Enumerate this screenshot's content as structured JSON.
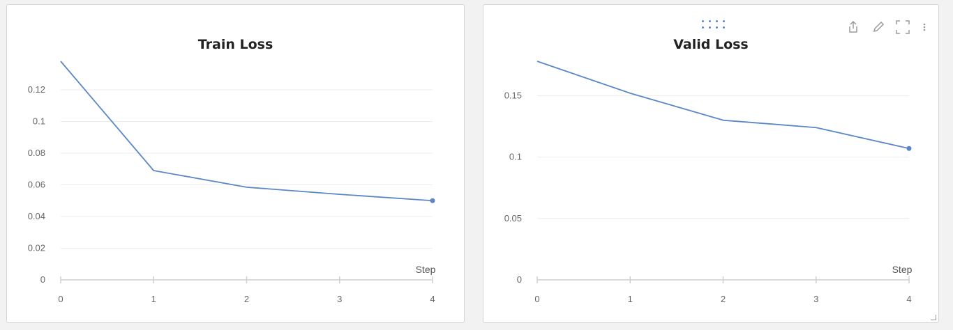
{
  "chart_data": [
    {
      "type": "line",
      "title": "Train Loss",
      "xlabel": "Step",
      "ylabel": "",
      "x": [
        0,
        1,
        2,
        3,
        4
      ],
      "series": [
        {
          "values": [
            0.138,
            0.069,
            0.0585,
            0.054,
            0.05
          ]
        }
      ],
      "xticks": [
        "0",
        "1",
        "2",
        "3",
        "4"
      ],
      "yticks": [
        "0",
        "0.02",
        "0.04",
        "0.06",
        "0.08",
        "0.1",
        "0.12"
      ],
      "ylim": [
        0,
        0.138
      ],
      "xlim": [
        0,
        4
      ],
      "grid": true,
      "line_color": "#5b86c7"
    },
    {
      "type": "line",
      "title": "Valid Loss",
      "xlabel": "Step",
      "ylabel": "",
      "x": [
        0,
        1,
        2,
        3,
        4
      ],
      "series": [
        {
          "values": [
            0.178,
            0.152,
            0.13,
            0.124,
            0.107
          ]
        }
      ],
      "xticks": [
        "0",
        "1",
        "2",
        "3",
        "4"
      ],
      "yticks": [
        "0",
        "0.05",
        "0.1",
        "0.15"
      ],
      "ylim": [
        0,
        0.178
      ],
      "xlim": [
        0,
        4
      ],
      "grid": true,
      "line_color": "#5b86c7"
    }
  ],
  "toolbar": {
    "icons": [
      "share-icon",
      "edit-icon",
      "fullscreen-icon",
      "more-options-icon"
    ]
  }
}
